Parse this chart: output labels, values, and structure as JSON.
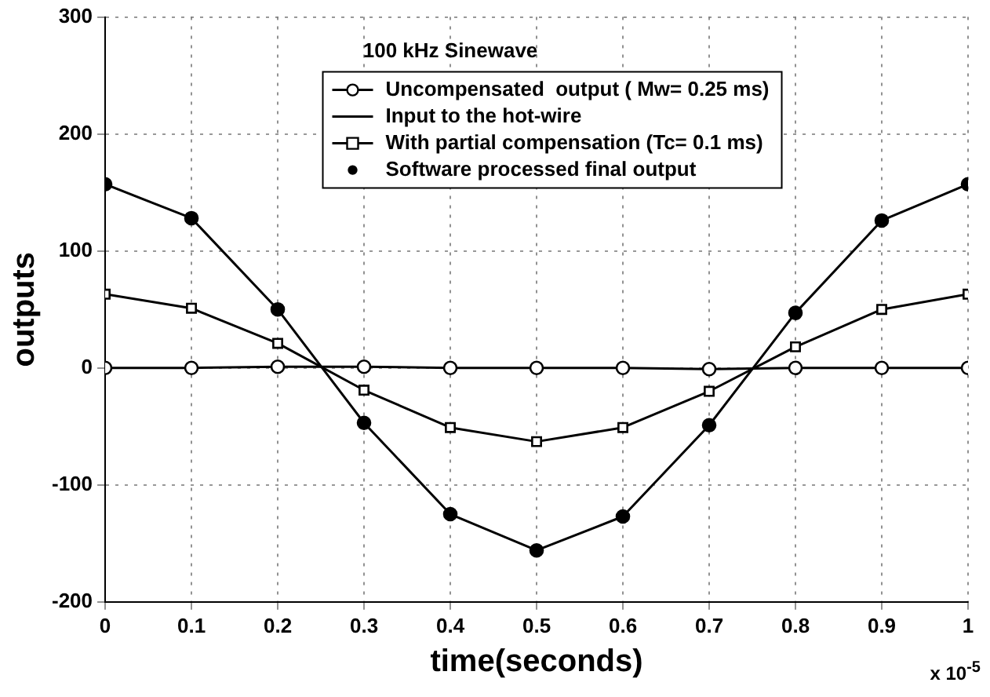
{
  "chart_data": {
    "type": "line",
    "title": "100 kHz Sinewave",
    "xlabel": "time(seconds)",
    "ylabel": "outputs",
    "x": [
      0,
      0.1,
      0.2,
      0.3,
      0.4,
      0.5,
      0.6,
      0.7,
      0.8,
      0.9,
      1
    ],
    "series": [
      {
        "name": "Uncompensated  output ( Mw= 0.25 ms)",
        "color": "#000000",
        "marker": "circle",
        "values": [
          0,
          0,
          1,
          1,
          0,
          0,
          0,
          -1,
          0,
          0,
          0
        ]
      },
      {
        "name": "Input to the hot-wire",
        "color": "#000000",
        "marker": "none",
        "values": [
          157,
          128,
          50,
          -47,
          -125,
          -156,
          -127,
          -49,
          47,
          126,
          157
        ]
      },
      {
        "name": "With partial compensation (Tc= 0.1 ms)",
        "color": "#000000",
        "marker": "square",
        "values": [
          63,
          51,
          21,
          -19,
          -51,
          -63,
          -51,
          -20,
          18,
          50,
          63
        ]
      },
      {
        "name": "Software processed final output",
        "type": "scatter",
        "color": "#000000",
        "marker": "circle",
        "values": [
          157,
          128,
          50,
          -47,
          -125,
          -156,
          -127,
          -49,
          47,
          126,
          157
        ]
      }
    ],
    "xlim": [
      0,
      1
    ],
    "xticks": [
      0,
      0.1,
      0.2,
      0.3,
      0.4,
      0.5,
      0.6,
      0.7,
      0.8,
      0.9,
      1
    ],
    "ylim": [
      -200,
      300
    ],
    "yticks": [
      -200,
      -100,
      0,
      100,
      200,
      300
    ],
    "grid": true,
    "legend": "top",
    "line_style": "solid",
    "annotations": [
      "x 10$^{-5}$"
    ]
  }
}
